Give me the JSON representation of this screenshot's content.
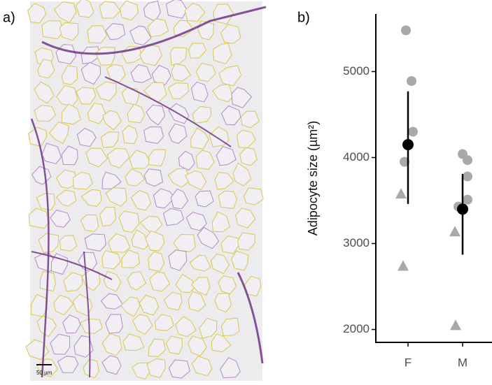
{
  "panel_labels": [
    "a)",
    "b)"
  ],
  "scale_bar": "50 µm",
  "chart_data": {
    "type": "dot",
    "y_label": "Adipocyte size (µm²)",
    "categories": [
      "F",
      "M"
    ],
    "circles": {
      "color": "#a9a9a9",
      "values": [
        [
          5480,
          4890,
          4300,
          3950
        ],
        [
          4040,
          3970,
          3780,
          3510,
          3430
        ]
      ]
    },
    "triangles": {
      "color": "#a9a9a9",
      "values": [
        [
          3580,
          2740
        ],
        [
          3140,
          2050
        ]
      ]
    },
    "mean": {
      "color": "#000000",
      "values": [
        4150,
        3400
      ],
      "lower": [
        3460,
        2870
      ],
      "upper": [
        4770,
        3810
      ]
    },
    "ylim": [
      1850,
      5670
    ],
    "yticks": [
      2000,
      3000,
      4000,
      5000
    ]
  }
}
